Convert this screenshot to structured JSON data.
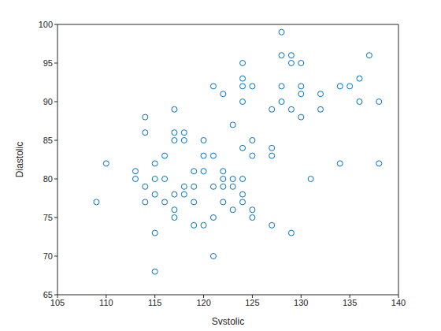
{
  "chart_data": {
    "type": "scatter",
    "x_label": "Systolic",
    "y_label": "Diastolic",
    "x": [
      109,
      110,
      113,
      113,
      114,
      114,
      114,
      114,
      115,
      115,
      115,
      115,
      115,
      116,
      116,
      116,
      117,
      117,
      117,
      117,
      117,
      117,
      118,
      118,
      118,
      118,
      119,
      119,
      119,
      119,
      120,
      120,
      120,
      120,
      121,
      121,
      121,
      121,
      121,
      122,
      122,
      122,
      122,
      122,
      123,
      123,
      123,
      123,
      124,
      124,
      124,
      124,
      124,
      124,
      124,
      124,
      125,
      125,
      125,
      125,
      125,
      127,
      127,
      127,
      127,
      128,
      128,
      128,
      128,
      129,
      129,
      129,
      129,
      130,
      130,
      130,
      130,
      131,
      132,
      132,
      134,
      134,
      135,
      136,
      136,
      137,
      138,
      138
    ],
    "values": [
      77,
      82,
      81,
      80,
      88,
      86,
      79,
      77,
      82,
      80,
      78,
      73,
      68,
      83,
      80,
      77,
      89,
      86,
      85,
      78,
      76,
      75,
      86,
      85,
      79,
      78,
      81,
      79,
      77,
      74,
      85,
      83,
      81,
      74,
      92,
      83,
      79,
      75,
      70,
      91,
      81,
      80,
      79,
      77,
      87,
      80,
      79,
      76,
      95,
      93,
      92,
      90,
      84,
      80,
      78,
      77,
      92,
      85,
      83,
      76,
      75,
      89,
      84,
      83,
      74,
      99,
      96,
      92,
      90,
      96,
      95,
      89,
      73,
      95,
      92,
      91,
      88,
      80,
      91,
      89,
      92,
      82,
      92,
      93,
      90,
      96,
      90,
      82
    ],
    "color": "#0072bd",
    "marker": "open_circle",
    "xlim": [
      105,
      140
    ],
    "xticks": [
      105,
      110,
      115,
      120,
      125,
      130,
      135,
      140
    ],
    "ylim": [
      65,
      100
    ],
    "yticks": [
      65,
      70,
      75,
      80,
      85,
      90,
      95,
      100
    ],
    "grid": false
  }
}
